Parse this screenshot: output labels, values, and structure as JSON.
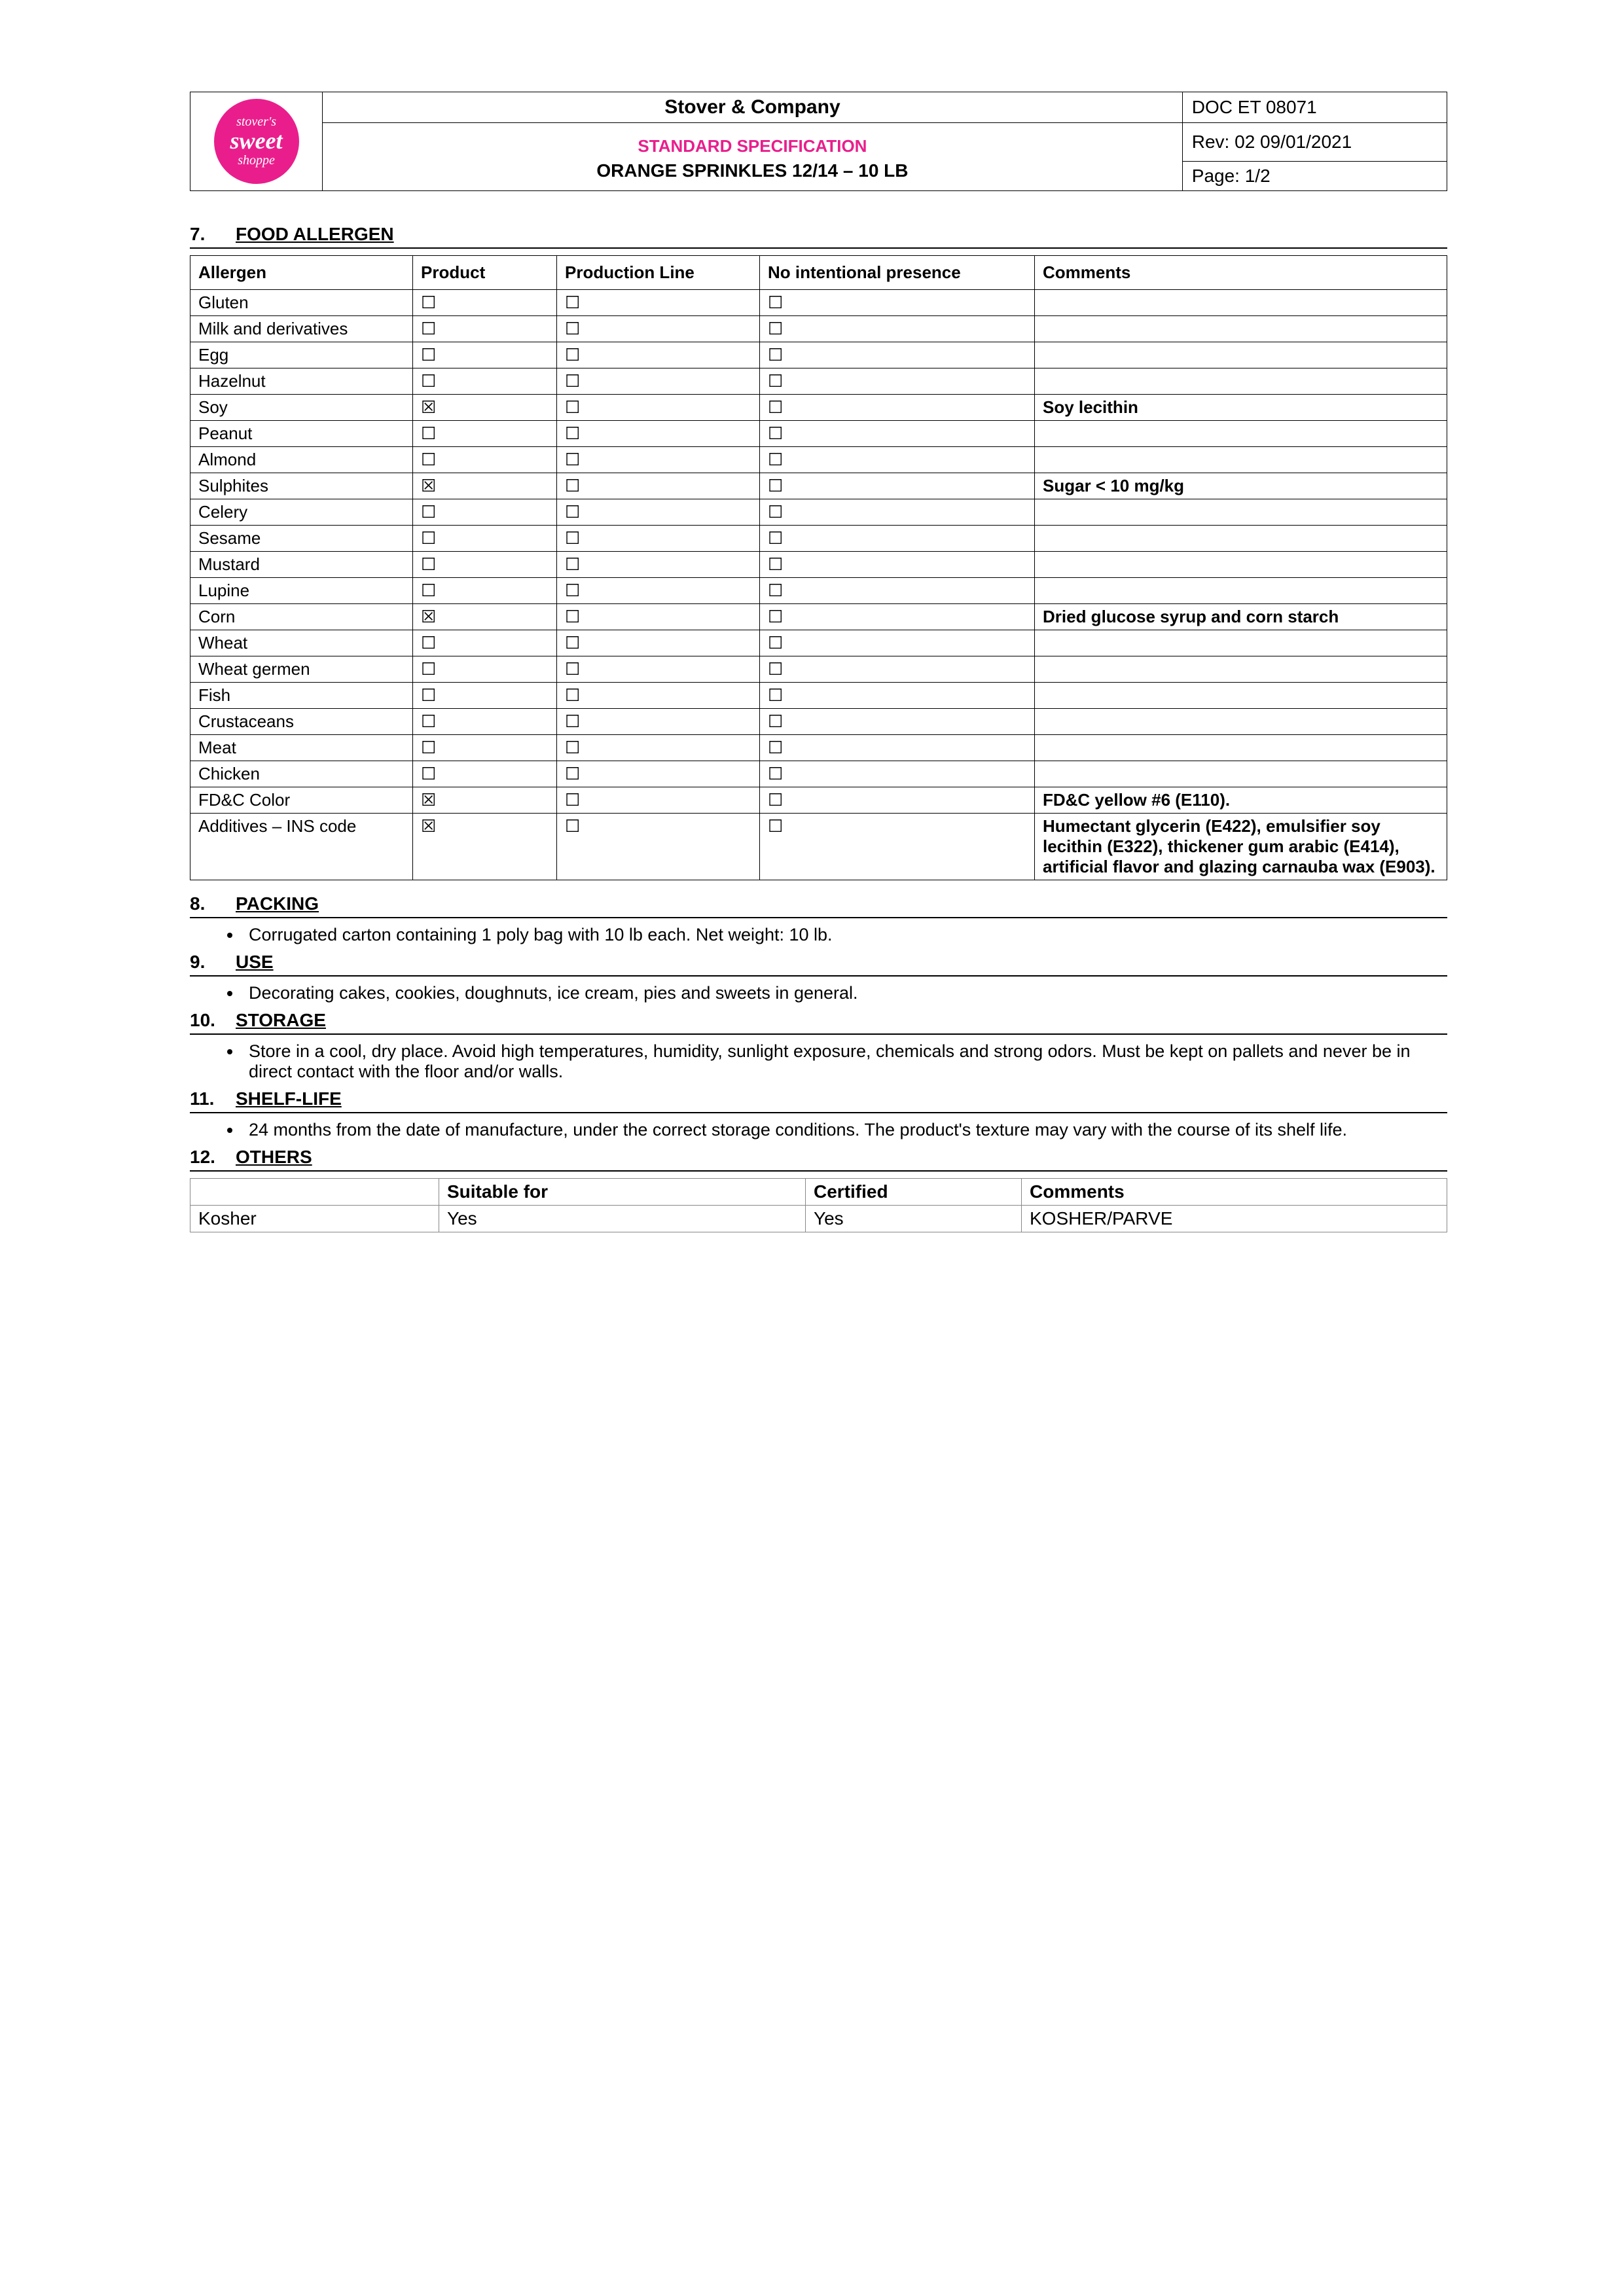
{
  "header": {
    "logo": {
      "line1": "stover's",
      "line2": "sweet",
      "line3": "shoppe"
    },
    "company": "Stover & Company",
    "spec_label": "STANDARD SPECIFICATION",
    "product": "ORANGE SPRINKLES 12/14 – 10 LB",
    "doc": "DOC ET 08071",
    "rev": "Rev: 02 09/01/2021",
    "page": "Page: 1/2"
  },
  "sections": {
    "s7": {
      "num": "7.",
      "title": "FOOD ALLERGEN"
    },
    "s8": {
      "num": "8.",
      "title": "PACKING"
    },
    "s9": {
      "num": "9.",
      "title": "USE"
    },
    "s10": {
      "num": "10.",
      "title": "STORAGE"
    },
    "s11": {
      "num": "11.",
      "title": "SHELF-LIFE"
    },
    "s12": {
      "num": "12.",
      "title": "OTHERS"
    }
  },
  "allergen_table": {
    "headers": [
      "Allergen",
      "Product",
      "Production Line",
      "No intentional presence",
      "Comments"
    ],
    "rows": [
      {
        "name": "Gluten",
        "product": false,
        "line": false,
        "noint": false,
        "comment": ""
      },
      {
        "name": "Milk and derivatives",
        "product": false,
        "line": false,
        "noint": false,
        "comment": ""
      },
      {
        "name": "Egg",
        "product": false,
        "line": false,
        "noint": false,
        "comment": ""
      },
      {
        "name": "Hazelnut",
        "product": false,
        "line": false,
        "noint": false,
        "comment": ""
      },
      {
        "name": "Soy",
        "product": true,
        "line": false,
        "noint": false,
        "comment": "Soy lecithin"
      },
      {
        "name": "Peanut",
        "product": false,
        "line": false,
        "noint": false,
        "comment": ""
      },
      {
        "name": "Almond",
        "product": false,
        "line": false,
        "noint": false,
        "comment": ""
      },
      {
        "name": "Sulphites",
        "product": true,
        "line": false,
        "noint": false,
        "comment": "Sugar < 10 mg/kg"
      },
      {
        "name": "Celery",
        "product": false,
        "line": false,
        "noint": false,
        "comment": ""
      },
      {
        "name": "Sesame",
        "product": false,
        "line": false,
        "noint": false,
        "comment": ""
      },
      {
        "name": "Mustard",
        "product": false,
        "line": false,
        "noint": false,
        "comment": ""
      },
      {
        "name": "Lupine",
        "product": false,
        "line": false,
        "noint": false,
        "comment": ""
      },
      {
        "name": "Corn",
        "product": true,
        "line": false,
        "noint": false,
        "comment": "Dried glucose syrup and corn starch"
      },
      {
        "name": "Wheat",
        "product": false,
        "line": false,
        "noint": false,
        "comment": ""
      },
      {
        "name": "Wheat germen",
        "product": false,
        "line": false,
        "noint": false,
        "comment": ""
      },
      {
        "name": "Fish",
        "product": false,
        "line": false,
        "noint": false,
        "comment": ""
      },
      {
        "name": "Crustaceans",
        "product": false,
        "line": false,
        "noint": false,
        "comment": ""
      },
      {
        "name": "Meat",
        "product": false,
        "line": false,
        "noint": false,
        "comment": ""
      },
      {
        "name": "Chicken",
        "product": false,
        "line": false,
        "noint": false,
        "comment": ""
      },
      {
        "name": "FD&C Color",
        "product": true,
        "line": false,
        "noint": false,
        "comment": "FD&C yellow #6 (E110)."
      },
      {
        "name": "Additives – INS code",
        "product": true,
        "line": false,
        "noint": false,
        "comment": "Humectant glycerin (E422), emulsifier soy lecithin (E322), thickener gum arabic (E414), artificial flavor and glazing carnauba wax (E903).",
        "justify": true
      }
    ],
    "glyph_checked": "☒",
    "glyph_unchecked": "☐"
  },
  "packing": "Corrugated carton containing 1 poly bag with 10 lb each. Net weight: 10 lb.",
  "use": "Decorating cakes, cookies, doughnuts, ice cream, pies and sweets in general.",
  "storage": "Store in a cool, dry place. Avoid high temperatures, humidity, sunlight exposure, chemicals and strong odors. Must be kept on pallets and never be in direct contact with the floor and/or walls.",
  "shelf": "24 months from the date of manufacture, under the correct storage conditions. The product's texture may vary with the course of its shelf life.",
  "others_table": {
    "headers": [
      "",
      "Suitable for",
      "Certified",
      "Comments"
    ],
    "rows": [
      {
        "label": "Kosher",
        "suitable": "Yes",
        "certified": "Yes",
        "comments": "KOSHER/PARVE"
      }
    ]
  }
}
